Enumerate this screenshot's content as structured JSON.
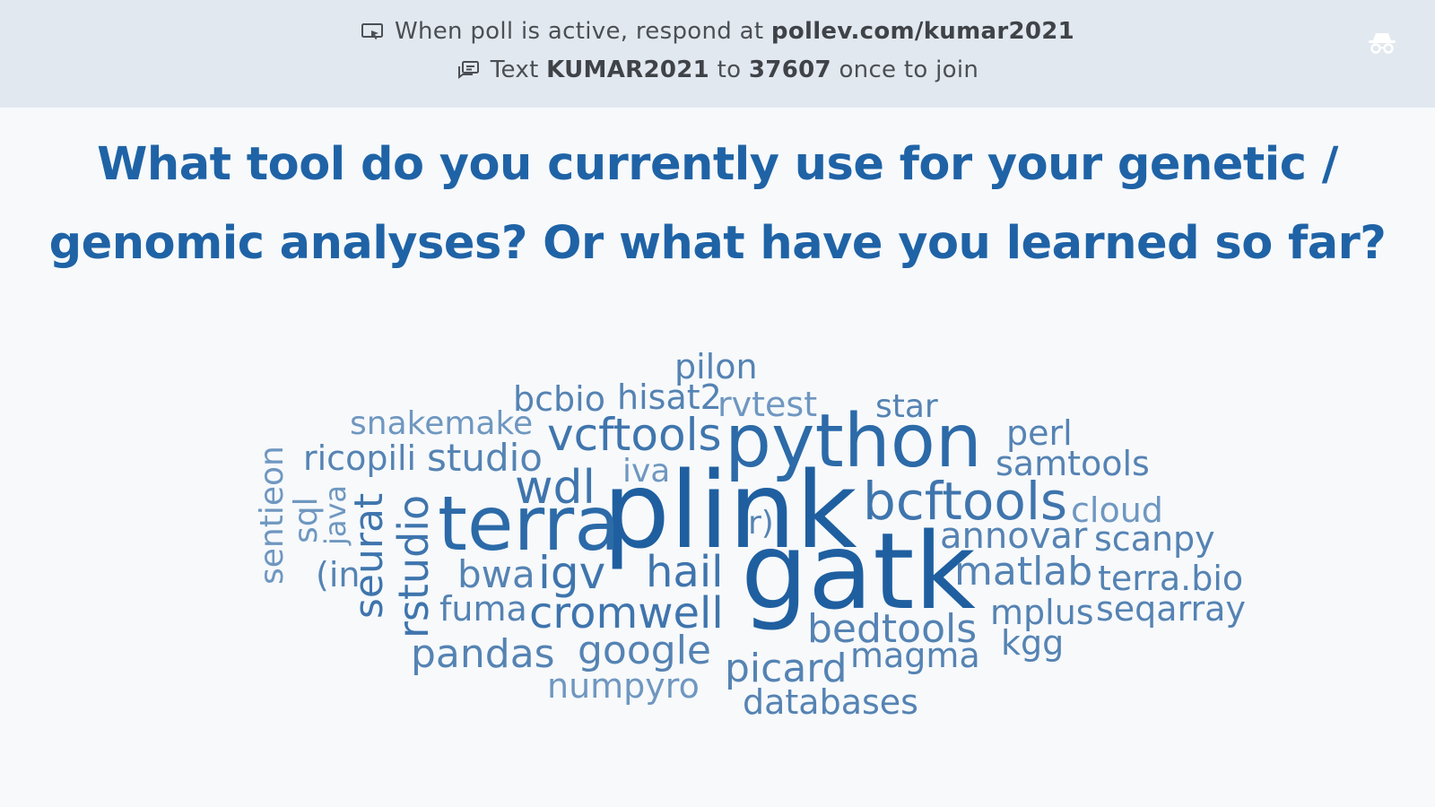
{
  "banner": {
    "line1_prefix": "When poll is active, respond at",
    "line1_link": "pollev.com/kumar2021",
    "line2_prefix": "Text",
    "line2_code": "KUMAR2021",
    "line2_to": "to",
    "line2_number": "37607",
    "line2_suffix": "once to join",
    "icons": [
      "screen-pointer-icon",
      "message-icon",
      "incognito-icon"
    ]
  },
  "question": {
    "title": "What tool do you currently use for your genetic / genomic analyses? Or what have you learned so far?"
  },
  "wordcloud": {
    "colors": [
      "#1f5fa0",
      "#2c6aa8",
      "#3f75ad",
      "#5583b3",
      "#6f97c0"
    ],
    "words": [
      "plink",
      "gatk",
      "python",
      "terra",
      "bcftools",
      "vcftools",
      "wdl",
      "igv",
      "hail",
      "cromwell",
      "studio",
      "bwa",
      "rstudio",
      "seurat",
      "snakemake",
      "ricopili",
      "bcbio",
      "hisat2",
      "pilon",
      "rvtest",
      "star",
      "perl",
      "samtools",
      "cloud",
      "scanpy",
      "annovar",
      "matlab",
      "terra.bio",
      "mplus",
      "seqarray",
      "kgg",
      "bedtools",
      "magma",
      "picard",
      "databases",
      "google",
      "numpyro",
      "pandas",
      "fuma",
      "iva",
      "sentieon",
      "sql",
      "java",
      "(in",
      "r)"
    ]
  }
}
